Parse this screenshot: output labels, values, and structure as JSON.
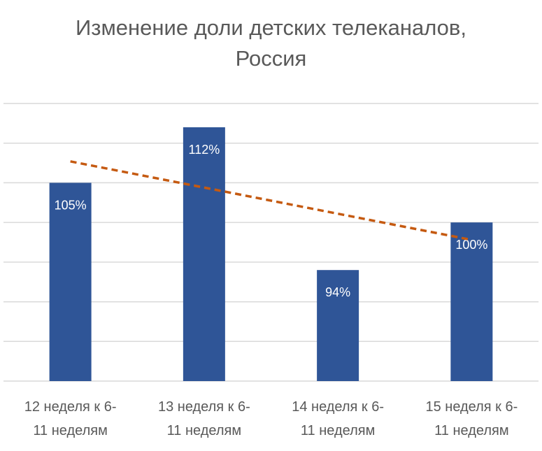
{
  "chart_data": {
    "type": "bar",
    "title_lines": [
      "Изменение доли детских телеканалов,",
      "Россия"
    ],
    "categories": [
      [
        "12 неделя к 6-",
        "11 неделям"
      ],
      [
        "13 неделя к 6-",
        "11 неделям"
      ],
      [
        "14 неделя к 6-",
        "11 неделям"
      ],
      [
        "15 неделя к 6-",
        "11 неделям"
      ]
    ],
    "values": [
      105,
      112,
      94,
      100
    ],
    "data_labels": [
      "105%",
      "112%",
      "94%",
      "100%"
    ],
    "ylim": [
      80,
      115
    ],
    "ytick_step": 5,
    "y_axis_labels_visible": false,
    "grid": true,
    "trendline": {
      "type": "linear",
      "style": "dashed"
    },
    "colors": {
      "bar": "#2F5597",
      "trendline": "#C55A11",
      "grid": "#D9D9D9",
      "text": "#595959"
    }
  }
}
